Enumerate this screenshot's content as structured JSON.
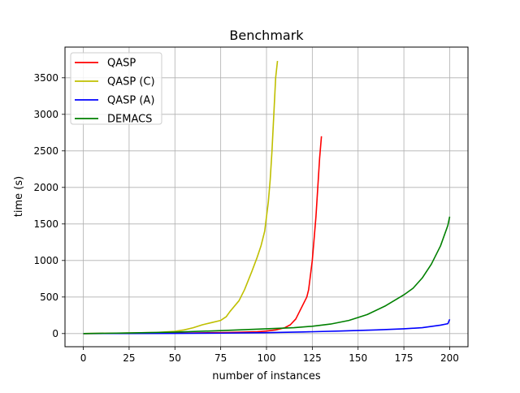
{
  "chart_data": {
    "type": "line",
    "title": "Benchmark",
    "xlabel": "number of instances",
    "ylabel": "time (s)",
    "xlim": [
      -10,
      210
    ],
    "ylim": [
      -180,
      3920
    ],
    "xticks": [
      0,
      25,
      50,
      75,
      100,
      125,
      150,
      175,
      200
    ],
    "yticks": [
      0,
      500,
      1000,
      1500,
      2000,
      2500,
      3000,
      3500
    ],
    "grid": true,
    "legend_position": "top-left",
    "series": [
      {
        "name": "QASP",
        "color": "#ff0000",
        "points": [
          [
            0,
            0
          ],
          [
            20,
            2
          ],
          [
            40,
            5
          ],
          [
            60,
            8
          ],
          [
            80,
            15
          ],
          [
            95,
            25
          ],
          [
            100,
            35
          ],
          [
            105,
            50
          ],
          [
            110,
            80
          ],
          [
            113,
            120
          ],
          [
            116,
            200
          ],
          [
            118,
            300
          ],
          [
            120,
            400
          ],
          [
            122,
            500
          ],
          [
            123,
            600
          ],
          [
            124,
            800
          ],
          [
            125,
            1000
          ],
          [
            126,
            1300
          ],
          [
            127,
            1600
          ],
          [
            128,
            2000
          ],
          [
            129,
            2400
          ],
          [
            130,
            2700
          ]
        ]
      },
      {
        "name": "QASP (C)",
        "color": "#bfbf00",
        "points": [
          [
            0,
            0
          ],
          [
            20,
            5
          ],
          [
            40,
            15
          ],
          [
            50,
            30
          ],
          [
            55,
            50
          ],
          [
            60,
            80
          ],
          [
            65,
            120
          ],
          [
            70,
            150
          ],
          [
            75,
            180
          ],
          [
            78,
            230
          ],
          [
            80,
            300
          ],
          [
            85,
            450
          ],
          [
            88,
            600
          ],
          [
            92,
            850
          ],
          [
            95,
            1050
          ],
          [
            97,
            1200
          ],
          [
            99,
            1400
          ],
          [
            100,
            1600
          ],
          [
            101,
            1800
          ],
          [
            102,
            2100
          ],
          [
            103,
            2500
          ],
          [
            104,
            3000
          ],
          [
            105,
            3500
          ],
          [
            106,
            3730
          ]
        ]
      },
      {
        "name": "QASP (A)",
        "color": "#0000ff",
        "points": [
          [
            0,
            0
          ],
          [
            25,
            1
          ],
          [
            50,
            3
          ],
          [
            75,
            6
          ],
          [
            100,
            12
          ],
          [
            120,
            22
          ],
          [
            140,
            35
          ],
          [
            160,
            50
          ],
          [
            175,
            65
          ],
          [
            185,
            80
          ],
          [
            195,
            115
          ],
          [
            199,
            135
          ],
          [
            200,
            195
          ]
        ]
      },
      {
        "name": "DEMACS",
        "color": "#008000",
        "points": [
          [
            0,
            0
          ],
          [
            25,
            8
          ],
          [
            50,
            20
          ],
          [
            75,
            40
          ],
          [
            100,
            65
          ],
          [
            115,
            80
          ],
          [
            125,
            100
          ],
          [
            135,
            130
          ],
          [
            145,
            180
          ],
          [
            155,
            260
          ],
          [
            165,
            380
          ],
          [
            175,
            530
          ],
          [
            180,
            620
          ],
          [
            185,
            760
          ],
          [
            190,
            950
          ],
          [
            195,
            1200
          ],
          [
            199,
            1480
          ],
          [
            200,
            1600
          ]
        ]
      }
    ]
  }
}
